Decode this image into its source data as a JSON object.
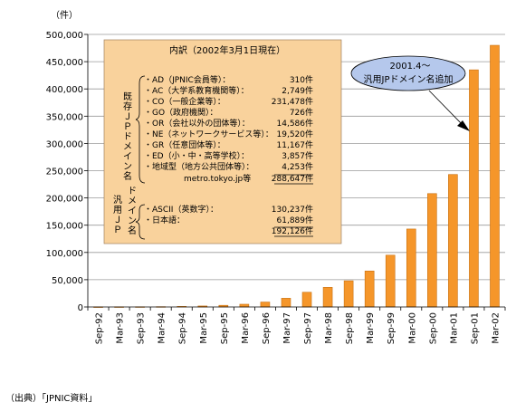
{
  "chart_data": {
    "type": "bar",
    "unit_label": "（件）",
    "categories": [
      "Sep-92",
      "Mar-93",
      "Sep-93",
      "Mar-94",
      "Sep-94",
      "Mar-95",
      "Sep-95",
      "Mar-96",
      "Sep-96",
      "Mar-97",
      "Sep-97",
      "Mar-98",
      "Sep-98",
      "Mar-99",
      "Sep-99",
      "Mar-00",
      "Sep-00",
      "Mar-01",
      "Sep-01",
      "Mar-02"
    ],
    "values": [
      100,
      200,
      300,
      500,
      1000,
      1800,
      3000,
      5000,
      9000,
      16000,
      27000,
      36000,
      48000,
      66000,
      95000,
      143000,
      208000,
      243000,
      435000,
      480000
    ],
    "ylim": [
      0,
      500000
    ],
    "yticks": [
      "0",
      "50,000",
      "100,000",
      "150,000",
      "200,000",
      "250,000",
      "300,000",
      "350,000",
      "400,000",
      "450,000",
      "500,000"
    ],
    "bar_color": "#f5962a",
    "bar_edge_color": "#c87010",
    "callout": {
      "line1": "2001.4～",
      "line2": "汎用JPドメイン名追加",
      "fill": "#b5c8ec"
    },
    "breakdown": {
      "fill": "#f9d29c",
      "title": "内訳（2002年3月1日現在）",
      "group1_label": [
        "既",
        "存",
        "Ｊ",
        "Ｐ",
        "ド",
        "メ",
        "イ",
        "ン",
        "名"
      ],
      "group1": [
        {
          "label": "・AD（JPNIC会員等）：",
          "value": "310件"
        },
        {
          "label": "・AC（大学系教育機関等）：",
          "value": "2,749件"
        },
        {
          "label": "・CO（一般企業等）：",
          "value": "231,478件"
        },
        {
          "label": "・GO（政府機関）：",
          "value": "726件"
        },
        {
          "label": "・OR（会社以外の団体等）：",
          "value": "14,586件"
        },
        {
          "label": "・NE（ネットワークサービス等）：",
          "value": "19,520件"
        },
        {
          "label": "・GR（任意団体等）：",
          "value": "11,167件"
        },
        {
          "label": "・ED（小・中・高等学校）：",
          "value": "3,857件"
        },
        {
          "label": "・地域型（地方公共団体等）：",
          "value": "4,253件"
        }
      ],
      "metro_note": "metro.tokyo.jp等",
      "group1_total": "288,647件",
      "group2_label_a": [
        "汎",
        "用",
        "Ｊ",
        "Ｐ"
      ],
      "group2_label_b": [
        "ド",
        "メ",
        "イ",
        "ン",
        "名"
      ],
      "group2": [
        {
          "label": "・ASCII（英数字）：",
          "value": "130,237件"
        },
        {
          "label": "・日本語：",
          "value": "61,889件"
        }
      ],
      "group2_total": "192,126件"
    }
  },
  "footer": {
    "source": "（出典）「JPNIC資料」"
  }
}
